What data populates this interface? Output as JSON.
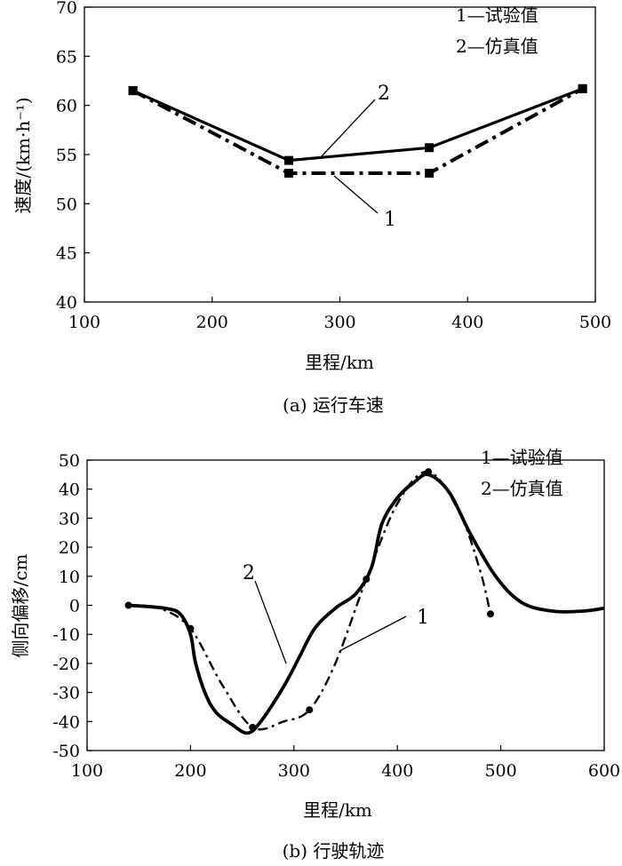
{
  "chart_data": [
    {
      "type": "line",
      "caption": "(a) 运行车速",
      "xlabel": "里程/km",
      "ylabel": "速度/(km·h⁻¹)",
      "xlim": [
        100,
        500
      ],
      "ylim": [
        40,
        70
      ],
      "xticks": [
        "100",
        "200",
        "300",
        "400",
        "500"
      ],
      "yticks": [
        "40",
        "45",
        "50",
        "55",
        "60",
        "65",
        "70"
      ],
      "legend_position": "top-right",
      "legend": [
        "1—试验值",
        "2—仿真值"
      ],
      "series": [
        {
          "name": "1",
          "style": "dash-dot",
          "marker": "square",
          "color": "#000000",
          "x": [
            138,
            260,
            370,
            490
          ],
          "y": [
            61.5,
            53.1,
            53.1,
            61.7
          ]
        },
        {
          "name": "2",
          "style": "solid",
          "marker": "square",
          "color": "#000000",
          "x": [
            138,
            260,
            370,
            490
          ],
          "y": [
            61.5,
            54.4,
            55.7,
            61.7
          ]
        }
      ]
    },
    {
      "type": "line",
      "caption": "(b) 行驶轨迹",
      "xlabel": "里程/km",
      "ylabel": "侧向偏移/cm",
      "xlim": [
        100,
        600
      ],
      "ylim": [
        -50,
        50
      ],
      "xticks": [
        "100",
        "200",
        "300",
        "400",
        "500",
        "600"
      ],
      "yticks": [
        "-50",
        "-40",
        "-30",
        "-20",
        "-10",
        "0",
        "10",
        "20",
        "30",
        "40",
        "50"
      ],
      "legend_position": "top-right",
      "legend": [
        "1—试验值",
        "2—仿真值"
      ],
      "series": [
        {
          "name": "1",
          "style": "dash-dot",
          "marker": "circle",
          "color": "#000000",
          "x": [
            140,
            170,
            200,
            230,
            260,
            290,
            315,
            340,
            370,
            400,
            430,
            460,
            480,
            490
          ],
          "y": [
            0,
            -1,
            -8,
            -27,
            -42,
            -40,
            -36,
            -20,
            9,
            35,
            46,
            32,
            12,
            -3
          ],
          "markers_x": [
            140,
            200,
            260,
            315,
            370,
            430,
            490
          ],
          "markers_y": [
            0,
            -8,
            -42,
            -36,
            9,
            46,
            -3
          ]
        },
        {
          "name": "2",
          "style": "solid",
          "marker": "none",
          "color": "#000000",
          "x": [
            140,
            175,
            190,
            200,
            205,
            215,
            225,
            240,
            255,
            268,
            290,
            305,
            320,
            340,
            360,
            375,
            385,
            400,
            415,
            430,
            450,
            470,
            495,
            520,
            550,
            580,
            600
          ],
          "y": [
            0,
            -1,
            -3,
            -10,
            -20,
            -31,
            -37,
            -41,
            -44,
            -40,
            -28,
            -18,
            -8,
            -1,
            4,
            13,
            28,
            37,
            42,
            45,
            39,
            25,
            10,
            1,
            -2,
            -2,
            -1
          ]
        }
      ]
    }
  ],
  "callouts": [
    {
      "text": "2",
      "series": "2",
      "panel": 0
    },
    {
      "text": "1",
      "series": "1",
      "panel": 0
    },
    {
      "text": "2",
      "series": "2",
      "panel": 1
    },
    {
      "text": "1",
      "series": "1",
      "panel": 1
    }
  ]
}
